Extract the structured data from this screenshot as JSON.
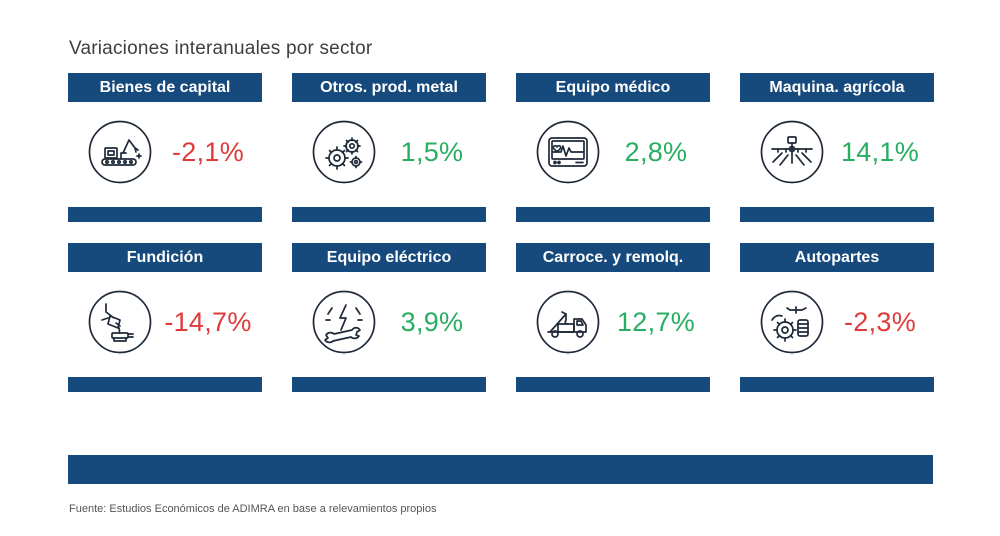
{
  "title": "Variaciones interanuales por sector",
  "colors": {
    "header": "#174a7c",
    "positive": "#27ae60",
    "negative": "#e03a3a",
    "icon_stroke": "#1e2a38"
  },
  "sectors": [
    {
      "name": "Bienes de capital",
      "value": "-2,1%",
      "trend": "negative",
      "icon": "industrial-robot-icon"
    },
    {
      "name": "Otros. prod. metal",
      "value": "1,5%",
      "trend": "positive",
      "icon": "gears-icon"
    },
    {
      "name": "Equipo médico",
      "value": "2,8%",
      "trend": "positive",
      "icon": "heart-monitor-icon"
    },
    {
      "name": "Maquina. agrícola",
      "value": "14,1%",
      "trend": "positive",
      "icon": "crop-sprayer-icon"
    },
    {
      "name": "Fundición",
      "value": "-14,7%",
      "trend": "negative",
      "icon": "foundry-ladle-icon"
    },
    {
      "name": "Equipo eléctrico",
      "value": "3,9%",
      "trend": "positive",
      "icon": "electric-wrench-icon"
    },
    {
      "name": "Carroce. y remolq.",
      "value": "12,7%",
      "trend": "positive",
      "icon": "tow-truck-icon"
    },
    {
      "name": "Autopartes",
      "value": "-2,3%",
      "trend": "negative",
      "icon": "auto-parts-icon"
    }
  ],
  "source": "Fuente: Estudios Económicos de ADIMRA en base a relevamientos propios"
}
